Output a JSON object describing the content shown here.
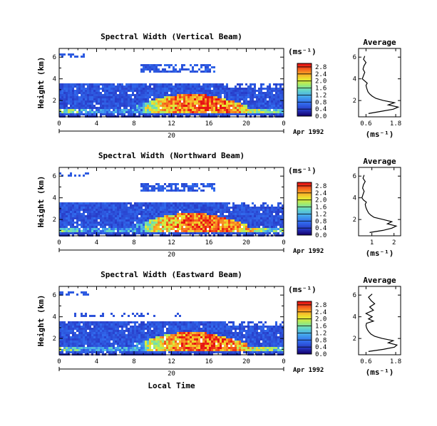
{
  "chart_data": [
    {
      "type": "heatmap",
      "id": "vertical",
      "title": "Spectral Width (Vertical Beam)",
      "ylabel": "Height (km)",
      "x_ticks": [
        "0",
        "4",
        "8",
        "12",
        "16",
        "20",
        "0"
      ],
      "x_range": [
        0,
        24
      ],
      "y_ticks": [
        "2",
        "4",
        "6"
      ],
      "y_range": [
        0.5,
        6.8
      ],
      "day_label": "20",
      "date_label": "Apr 1992",
      "colorbar": {
        "unit": "(ms⁻¹)",
        "ticks": [
          "0.0",
          "0.4",
          "0.8",
          "1.2",
          "1.6",
          "2.0",
          "2.4",
          "2.8"
        ],
        "range": [
          0,
          3.0
        ]
      },
      "profile": {
        "title": "Average",
        "xlabel": "(ms⁻¹)",
        "x_ticks": [
          "0.6",
          "1.8"
        ],
        "x_range": [
          0.3,
          2.0
        ],
        "y_ticks": [
          "2",
          "4",
          "6"
        ],
        "y": [
          0.8,
          1.0,
          1.2,
          1.4,
          1.6,
          1.8,
          2.0,
          2.2,
          2.4,
          2.6,
          2.8,
          3.0,
          3.2,
          3.4,
          3.6,
          3.8,
          4.0,
          4.3,
          4.6,
          4.9,
          5.2,
          5.5,
          5.8,
          6.1
        ],
        "x": [
          0.7,
          1.2,
          1.7,
          1.9,
          1.5,
          1.75,
          1.3,
          1.0,
          0.85,
          0.75,
          0.68,
          0.65,
          0.62,
          0.6,
          0.65,
          0.55,
          0.45,
          0.5,
          0.55,
          0.48,
          0.52,
          0.6,
          0.5,
          0.55
        ]
      }
    },
    {
      "type": "heatmap",
      "id": "northward",
      "title": "Spectral Width (Northward Beam)",
      "ylabel": "Height (km)",
      "x_ticks": [
        "0",
        "4",
        "8",
        "12",
        "16",
        "20",
        "0"
      ],
      "x_range": [
        0,
        24
      ],
      "y_ticks": [
        "2",
        "4",
        "6"
      ],
      "y_range": [
        0.5,
        6.8
      ],
      "day_label": "20",
      "date_label": "Apr 1992",
      "colorbar": {
        "unit": "(ms⁻¹)",
        "ticks": [
          "0.0",
          "0.4",
          "0.8",
          "1.2",
          "1.6",
          "2.0",
          "2.4",
          "2.8"
        ],
        "range": [
          0,
          3.0
        ]
      },
      "profile": {
        "title": "Average",
        "xlabel": "(ms⁻¹)",
        "x_ticks": [
          "1",
          "2"
        ],
        "x_range": [
          0.4,
          2.3
        ],
        "y_ticks": [
          "2",
          "4",
          "6"
        ],
        "y": [
          0.8,
          1.0,
          1.2,
          1.4,
          1.6,
          1.8,
          2.0,
          2.2,
          2.4,
          2.6,
          2.8,
          3.0,
          3.2,
          3.4,
          3.6,
          3.8,
          4.0,
          4.3,
          4.6,
          4.9,
          5.2,
          5.5,
          5.8,
          6.1
        ],
        "x": [
          0.9,
          1.5,
          1.9,
          2.1,
          1.7,
          1.9,
          1.5,
          1.1,
          0.95,
          0.85,
          0.8,
          0.75,
          0.72,
          0.7,
          0.75,
          0.62,
          0.55,
          0.6,
          0.65,
          0.58,
          0.62,
          0.7,
          0.6,
          0.65
        ]
      }
    },
    {
      "type": "heatmap",
      "id": "eastward",
      "title": "Spectral Width (Eastward Beam)",
      "ylabel": "Height (km)",
      "x_ticks": [
        "0",
        "4",
        "8",
        "12",
        "16",
        "20",
        "0"
      ],
      "x_range": [
        0,
        24
      ],
      "y_ticks": [
        "2",
        "4",
        "6"
      ],
      "y_range": [
        0.5,
        6.8
      ],
      "day_label": "20",
      "date_label": "Apr 1992",
      "xlabel": "Local Time",
      "colorbar": {
        "unit": "(ms⁻¹)",
        "ticks": [
          "0.0",
          "0.4",
          "0.8",
          "1.2",
          "1.6",
          "2.0",
          "2.4",
          "2.8"
        ],
        "range": [
          0,
          3.0
        ]
      },
      "profile": {
        "title": "Average",
        "xlabel": "(ms⁻¹)",
        "x_ticks": [
          "0.6",
          "1.8"
        ],
        "x_range": [
          0.3,
          2.0
        ],
        "y_ticks": [
          "2",
          "4",
          "6"
        ],
        "y": [
          0.8,
          1.0,
          1.2,
          1.4,
          1.6,
          1.8,
          2.0,
          2.2,
          2.4,
          2.6,
          2.8,
          3.0,
          3.2,
          3.4,
          3.6,
          3.8,
          4.0,
          4.3,
          4.6,
          4.9,
          5.2,
          5.5,
          5.8,
          6.1
        ],
        "x": [
          0.7,
          1.3,
          1.75,
          1.85,
          1.5,
          1.7,
          1.25,
          0.95,
          0.8,
          0.72,
          0.66,
          0.62,
          0.6,
          0.62,
          0.9,
          0.7,
          0.85,
          0.6,
          0.9,
          0.75,
          0.95,
          0.8,
          0.7,
          0.85
        ]
      }
    }
  ]
}
